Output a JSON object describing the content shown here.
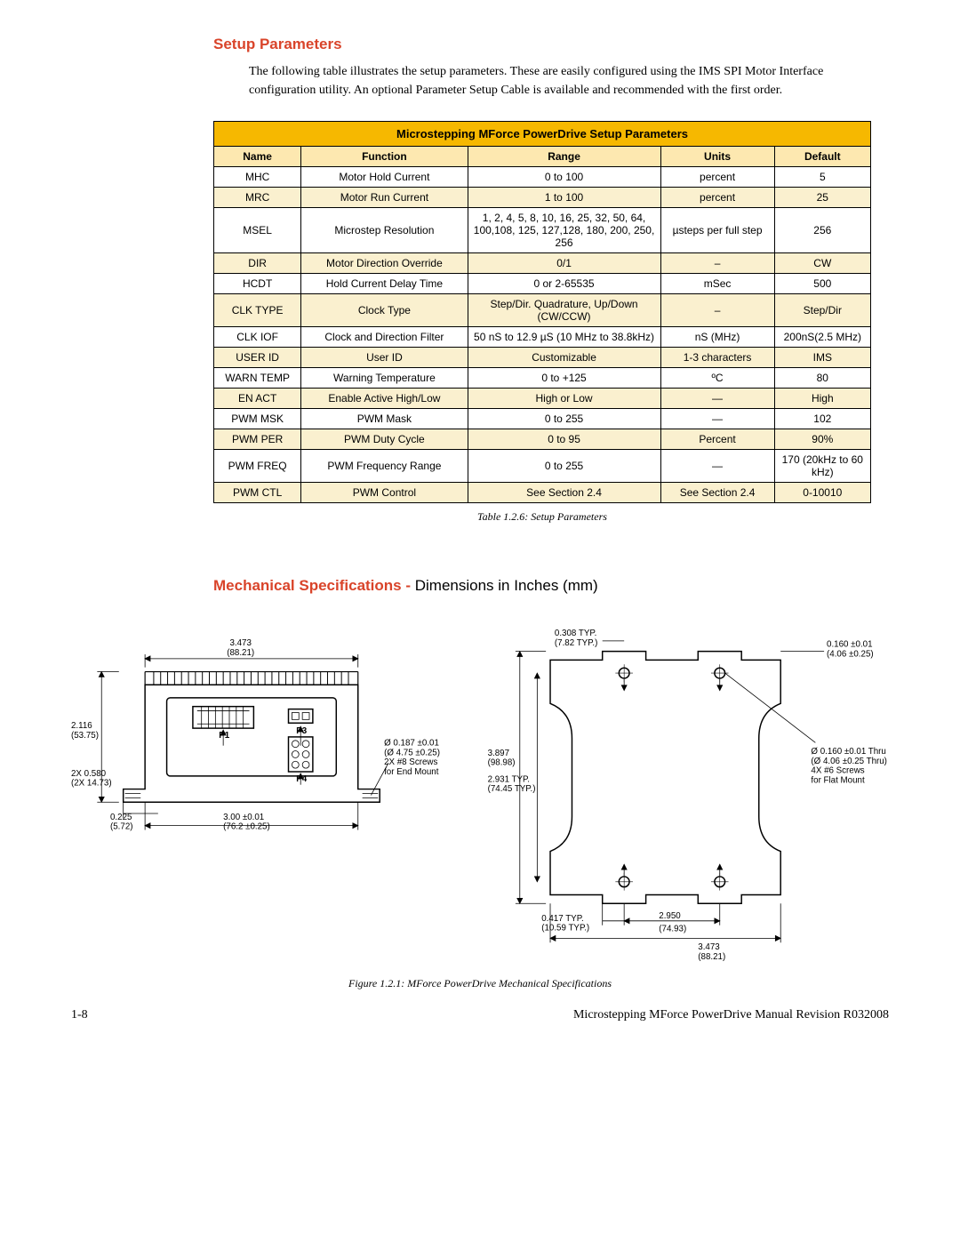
{
  "section1": {
    "title": "Setup Parameters",
    "body": "The following table illustrates the setup parameters. These are easily configured using the IMS SPI Motor Interface configuration utility. An optional Parameter Setup Cable is available and recommended with the first order."
  },
  "table": {
    "title": "Microstepping MForce PowerDrive Setup Parameters",
    "headers": [
      "Name",
      "Function",
      "Range",
      "Units",
      "Default"
    ],
    "title_bg": "#f6b800",
    "header_bg": "#fde8b0",
    "alt_row_bg": "#faf0cf",
    "rows": [
      [
        "MHC",
        "Motor Hold Current",
        "0 to 100",
        "percent",
        "5"
      ],
      [
        "MRC",
        "Motor Run Current",
        "1 to 100",
        "percent",
        "25"
      ],
      [
        "MSEL",
        "Microstep Resolution",
        "1, 2, 4, 5, 8, 10, 16, 25, 32, 50, 64, 100,108, 125, 127,128, 180, 200, 250, 256",
        "µsteps per full step",
        "256"
      ],
      [
        "DIR",
        "Motor Direction Override",
        "0/1",
        "–",
        "CW"
      ],
      [
        "HCDT",
        "Hold Current Delay Time",
        "0 or 2-65535",
        "mSec",
        "500"
      ],
      [
        "CLK TYPE",
        "Clock Type",
        "Step/Dir. Quadrature, Up/Down (CW/CCW)",
        "–",
        "Step/Dir"
      ],
      [
        "CLK IOF",
        "Clock and Direction Filter",
        "50 nS to 12.9 µS (10 MHz to 38.8kHz)",
        "nS (MHz)",
        "200nS(2.5 MHz)"
      ],
      [
        "USER ID",
        "User ID",
        "Customizable",
        "1-3 characters",
        "IMS"
      ],
      [
        "WARN TEMP",
        "Warning Temperature",
        "0 to +125",
        "ºC",
        "80"
      ],
      [
        "EN ACT",
        "Enable Active High/Low",
        "High or Low",
        "—",
        "High"
      ],
      [
        "PWM MSK",
        "PWM Mask",
        "0 to 255",
        "—",
        "102"
      ],
      [
        "PWM PER",
        "PWM Duty Cycle",
        "0 to 95",
        "Percent",
        "90%"
      ],
      [
        "PWM FREQ",
        "PWM Frequency Range",
        "0 to 255",
        "—",
        "170 (20kHz to 60 kHz)"
      ],
      [
        "PWM CTL",
        "PWM Control",
        "See Section 2.4",
        "See Section 2.4",
        "0-10010"
      ]
    ],
    "caption": "Table 1.2.6: Setup Parameters"
  },
  "section2": {
    "title_red": "Mechanical Specifications - ",
    "title_black": "Dimensions in Inches (mm)"
  },
  "diagram_left": {
    "dims": {
      "top_w": "3.473",
      "top_w_mm": "(88.21)",
      "left_h": "2.116",
      "left_h_mm": "(53.75)",
      "slot": "2X 0.580",
      "slot_mm": "(2X 14.73)",
      "bot_left": "0.225",
      "bot_left_mm": "(5.72)",
      "bot_mid": "3.00 ±0.01",
      "bot_mid_mm": "(76.2 ±0.25)",
      "hole": "Ø 0.187 ±0.01",
      "hole_mm": "(Ø 4.75 ±0.25)",
      "hole_note1": "2X #8 Screws",
      "hole_note2": "for End Mount",
      "p1": "P1",
      "p3": "P3",
      "p4": "P4"
    }
  },
  "diagram_right": {
    "dims": {
      "top": "0.308 TYP.",
      "top_mm": "(7.82 TYP.)",
      "top_right": "0.160 ±0.01",
      "top_right_mm": "(4.06 ±0.25)",
      "left_h": "3.897",
      "left_h_mm": "(98.98)",
      "left_h2": "2.931 TYP.",
      "left_h2_mm": "(74.45 TYP.)",
      "hole": "Ø 0.160 ±0.01 Thru",
      "hole_mm": "(Ø 4.06 ±0.25 Thru)",
      "hole_note1": "4X #6 Screws",
      "hole_note2": "for Flat Mount",
      "bot_left": "0.417 TYP.",
      "bot_left_mm": "(10.59 TYP.)",
      "bot_mid": "2.950",
      "bot_mid_mm": "(74.93)",
      "bot_w": "3.473",
      "bot_w_mm": "(88.21)"
    }
  },
  "figure_caption": "Figure 1.2.1: MForce PowerDrive Mechanical Specifications",
  "footer": {
    "page": "1-8",
    "doc": "Microstepping MForce PowerDrive Manual Revision R032008"
  },
  "colors": {
    "accent_red": "#d9442a",
    "table_title_bg": "#f6b800",
    "table_header_bg": "#fde8b0",
    "table_alt_bg": "#faf0cf"
  }
}
